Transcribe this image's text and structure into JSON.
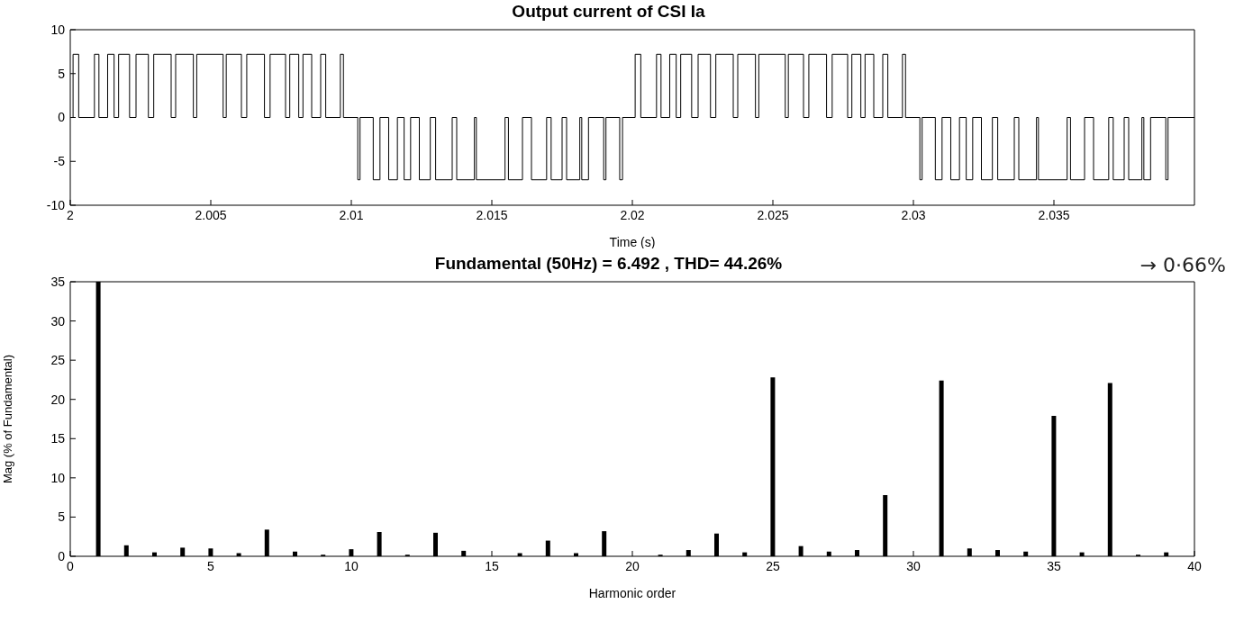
{
  "chart_data": [
    {
      "type": "step",
      "title": "Output current of CSI Ia",
      "xlabel": "Time (s)",
      "xlim": [
        2,
        2.04
      ],
      "xticks": [
        2,
        2.005,
        2.01,
        2.015,
        2.02,
        2.025,
        2.03,
        2.035
      ],
      "ylim": [
        -10,
        10
      ],
      "yticks": [
        -10,
        -5,
        0,
        5,
        10
      ],
      "grid": false,
      "legend": false,
      "series": [
        {
          "color": "#000000",
          "x": [
            2,
            2.0001,
            2.0003,
            2.00086,
            2.00102,
            2.00133,
            2.00156,
            2.00172,
            2.00211,
            2.00234,
            2.00278,
            2.00297,
            2.00359,
            2.00375,
            2.00438,
            2.0045,
            2.00544,
            2.00555,
            2.00609,
            2.00628,
            2.00691,
            2.00711,
            2.00766,
            2.00781,
            2.00813,
            2.00828,
            2.00859,
            2.00891,
            2.00909,
            2.00961,
            2.00972,
            2.01023,
            2.01031,
            2.01078,
            2.01102,
            2.01133,
            2.01164,
            2.01188,
            2.01211,
            2.01242,
            2.01281,
            2.013,
            2.01359,
            2.01375,
            2.01438,
            2.01445,
            2.01547,
            2.01559,
            2.01609,
            2.01641,
            2.01695,
            2.01711,
            2.0175,
            2.01766,
            2.01813,
            2.0182,
            2.01844,
            2.01898,
            2.01906,
            2.01955,
            2.01965,
            2.0201,
            2.0203,
            2.02086,
            2.02102,
            2.02133,
            2.02156,
            2.02172,
            2.02211,
            2.02234,
            2.02278,
            2.02297,
            2.02359,
            2.02375,
            2.02438,
            2.0245,
            2.02544,
            2.02555,
            2.02609,
            2.02628,
            2.02691,
            2.02711,
            2.02766,
            2.02781,
            2.02813,
            2.02828,
            2.02859,
            2.02891,
            2.02909,
            2.02961,
            2.02972,
            2.03023,
            2.03031,
            2.03078,
            2.03102,
            2.03133,
            2.03164,
            2.03188,
            2.03211,
            2.03242,
            2.03281,
            2.033,
            2.03359,
            2.03375,
            2.03438,
            2.03445,
            2.03547,
            2.03559,
            2.03609,
            2.03641,
            2.03695,
            2.03711,
            2.0375,
            2.03766,
            2.03813,
            2.0382,
            2.03844,
            2.03898,
            2.03906,
            2.04
          ],
          "values": [
            0,
            7.2,
            0,
            7.2,
            0,
            7.2,
            0,
            7.2,
            0,
            7.2,
            0,
            7.2,
            0,
            7.2,
            0,
            7.2,
            0,
            7.2,
            0,
            7.2,
            0,
            7.2,
            0,
            7.2,
            0,
            7.2,
            0,
            7.2,
            0,
            7.2,
            0,
            -7.1,
            0,
            -7.1,
            0,
            -7.1,
            0,
            -7.1,
            0,
            -7.1,
            0,
            -7.1,
            0,
            -7.1,
            0,
            -7.1,
            0,
            -7.1,
            0,
            -7.1,
            0,
            -7.1,
            0,
            -7.1,
            0,
            -7.1,
            0,
            -7.1,
            0,
            -7.1,
            0,
            7.2,
            0,
            7.2,
            0,
            7.2,
            0,
            7.2,
            0,
            7.2,
            0,
            7.2,
            0,
            7.2,
            0,
            7.2,
            0,
            7.2,
            0,
            7.2,
            0,
            7.2,
            0,
            7.2,
            0,
            7.2,
            0,
            7.2,
            0,
            7.2,
            0,
            -7.1,
            0,
            -7.1,
            0,
            -7.1,
            0,
            -7.1,
            0,
            -7.1,
            0,
            -7.1,
            0,
            -7.1,
            0,
            -7.1,
            0,
            -7.1,
            0,
            -7.1,
            0,
            -7.1,
            0,
            -7.1,
            0,
            -7.1,
            0,
            -7.1,
            0,
            0
          ]
        }
      ]
    },
    {
      "type": "bar",
      "title": "Fundamental (50Hz) = 6.492 , THD= 44.26%",
      "xlabel": "Harmonic order",
      "ylabel": "Mag (% of Fundamental)",
      "annotations": [
        "→ 0·66%"
      ],
      "xlim": [
        0,
        40
      ],
      "xticks": [
        0,
        5,
        10,
        15,
        20,
        25,
        30,
        35,
        40
      ],
      "ylim": [
        0,
        35
      ],
      "yticks": [
        0,
        5,
        10,
        15,
        20,
        25,
        30,
        35
      ],
      "grid": false,
      "legend": false,
      "x": [
        1,
        2,
        3,
        4,
        5,
        6,
        7,
        8,
        9,
        10,
        11,
        12,
        13,
        14,
        15,
        16,
        17,
        18,
        19,
        20,
        21,
        22,
        23,
        24,
        25,
        26,
        27,
        28,
        29,
        30,
        31,
        32,
        33,
        34,
        35,
        36,
        37,
        38,
        39
      ],
      "series": [
        {
          "color": "#000000",
          "values": [
            35,
            1.4,
            0.5,
            1.1,
            1.0,
            0.4,
            3.4,
            0.6,
            0.2,
            0.9,
            3.1,
            0.2,
            3.0,
            0.7,
            null,
            0.4,
            2.0,
            0.4,
            3.2,
            null,
            0.2,
            0.8,
            2.9,
            0.5,
            22.8,
            1.3,
            0.6,
            0.8,
            7.8,
            null,
            22.4,
            1.0,
            0.8,
            0.6,
            17.9,
            0.5,
            22.1,
            0.2,
            0.5
          ]
        }
      ]
    }
  ]
}
